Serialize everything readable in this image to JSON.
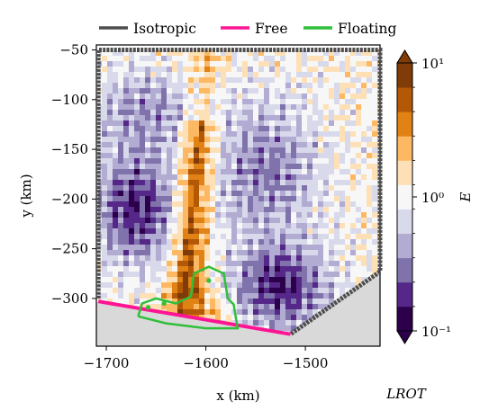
{
  "chart_data": {
    "type": "heatmap",
    "title": "",
    "xlabel": "x (km)",
    "ylabel": "y (km)",
    "xlim": [
      -1710,
      -1425
    ],
    "ylim": [
      -348,
      -45
    ],
    "xticks": [
      -1700,
      -1600,
      -1500
    ],
    "yticks": [
      -50,
      -100,
      -150,
      -200,
      -250,
      -300
    ],
    "xtick_labels": [
      "−1700",
      "−1600",
      "−1500"
    ],
    "ytick_labels": [
      "−50",
      "−100",
      "−150",
      "−200",
      "−250",
      "−300"
    ],
    "legend": {
      "placement": "top",
      "entries": [
        {
          "label": "Isotropic",
          "color": "#4d4d4d"
        },
        {
          "label": "Free",
          "color": "#ff1493"
        },
        {
          "label": "Floating",
          "color": "#2fbf3a"
        }
      ]
    },
    "colorbar": {
      "label": "E",
      "scale": "log",
      "range": [
        0.1,
        10
      ],
      "tick_labels": [
        "10⁻¹",
        "10⁰",
        "10¹"
      ],
      "colors": [
        "#2d004b",
        "#542788",
        "#8073ac",
        "#b2abd2",
        "#d8daeb",
        "#f7f7f7",
        "#fee0b6",
        "#fdb863",
        "#e08214",
        "#b35806",
        "#7f3b08"
      ]
    },
    "boundaries": {
      "isotropic": [
        [
          -1708,
          -300
        ],
        [
          -1708,
          -50
        ],
        [
          -1425,
          -50
        ],
        [
          -1425,
          -273
        ],
        [
          -1515,
          -336
        ]
      ],
      "free": [
        [
          -1708,
          -303
        ],
        [
          -1515,
          -336
        ]
      ],
      "floating": [
        [
          -1668,
          -318
        ],
        [
          -1664,
          -305
        ],
        [
          -1650,
          -300
        ],
        [
          -1630,
          -305
        ],
        [
          -1615,
          -298
        ],
        [
          -1612,
          -275
        ],
        [
          -1597,
          -268
        ],
        [
          -1582,
          -275
        ],
        [
          -1578,
          -300
        ],
        [
          -1572,
          -306
        ],
        [
          -1568,
          -330
        ],
        [
          -1600,
          -330
        ],
        [
          -1640,
          -325
        ],
        [
          -1668,
          -318
        ]
      ]
    },
    "annotation": "LROT"
  }
}
